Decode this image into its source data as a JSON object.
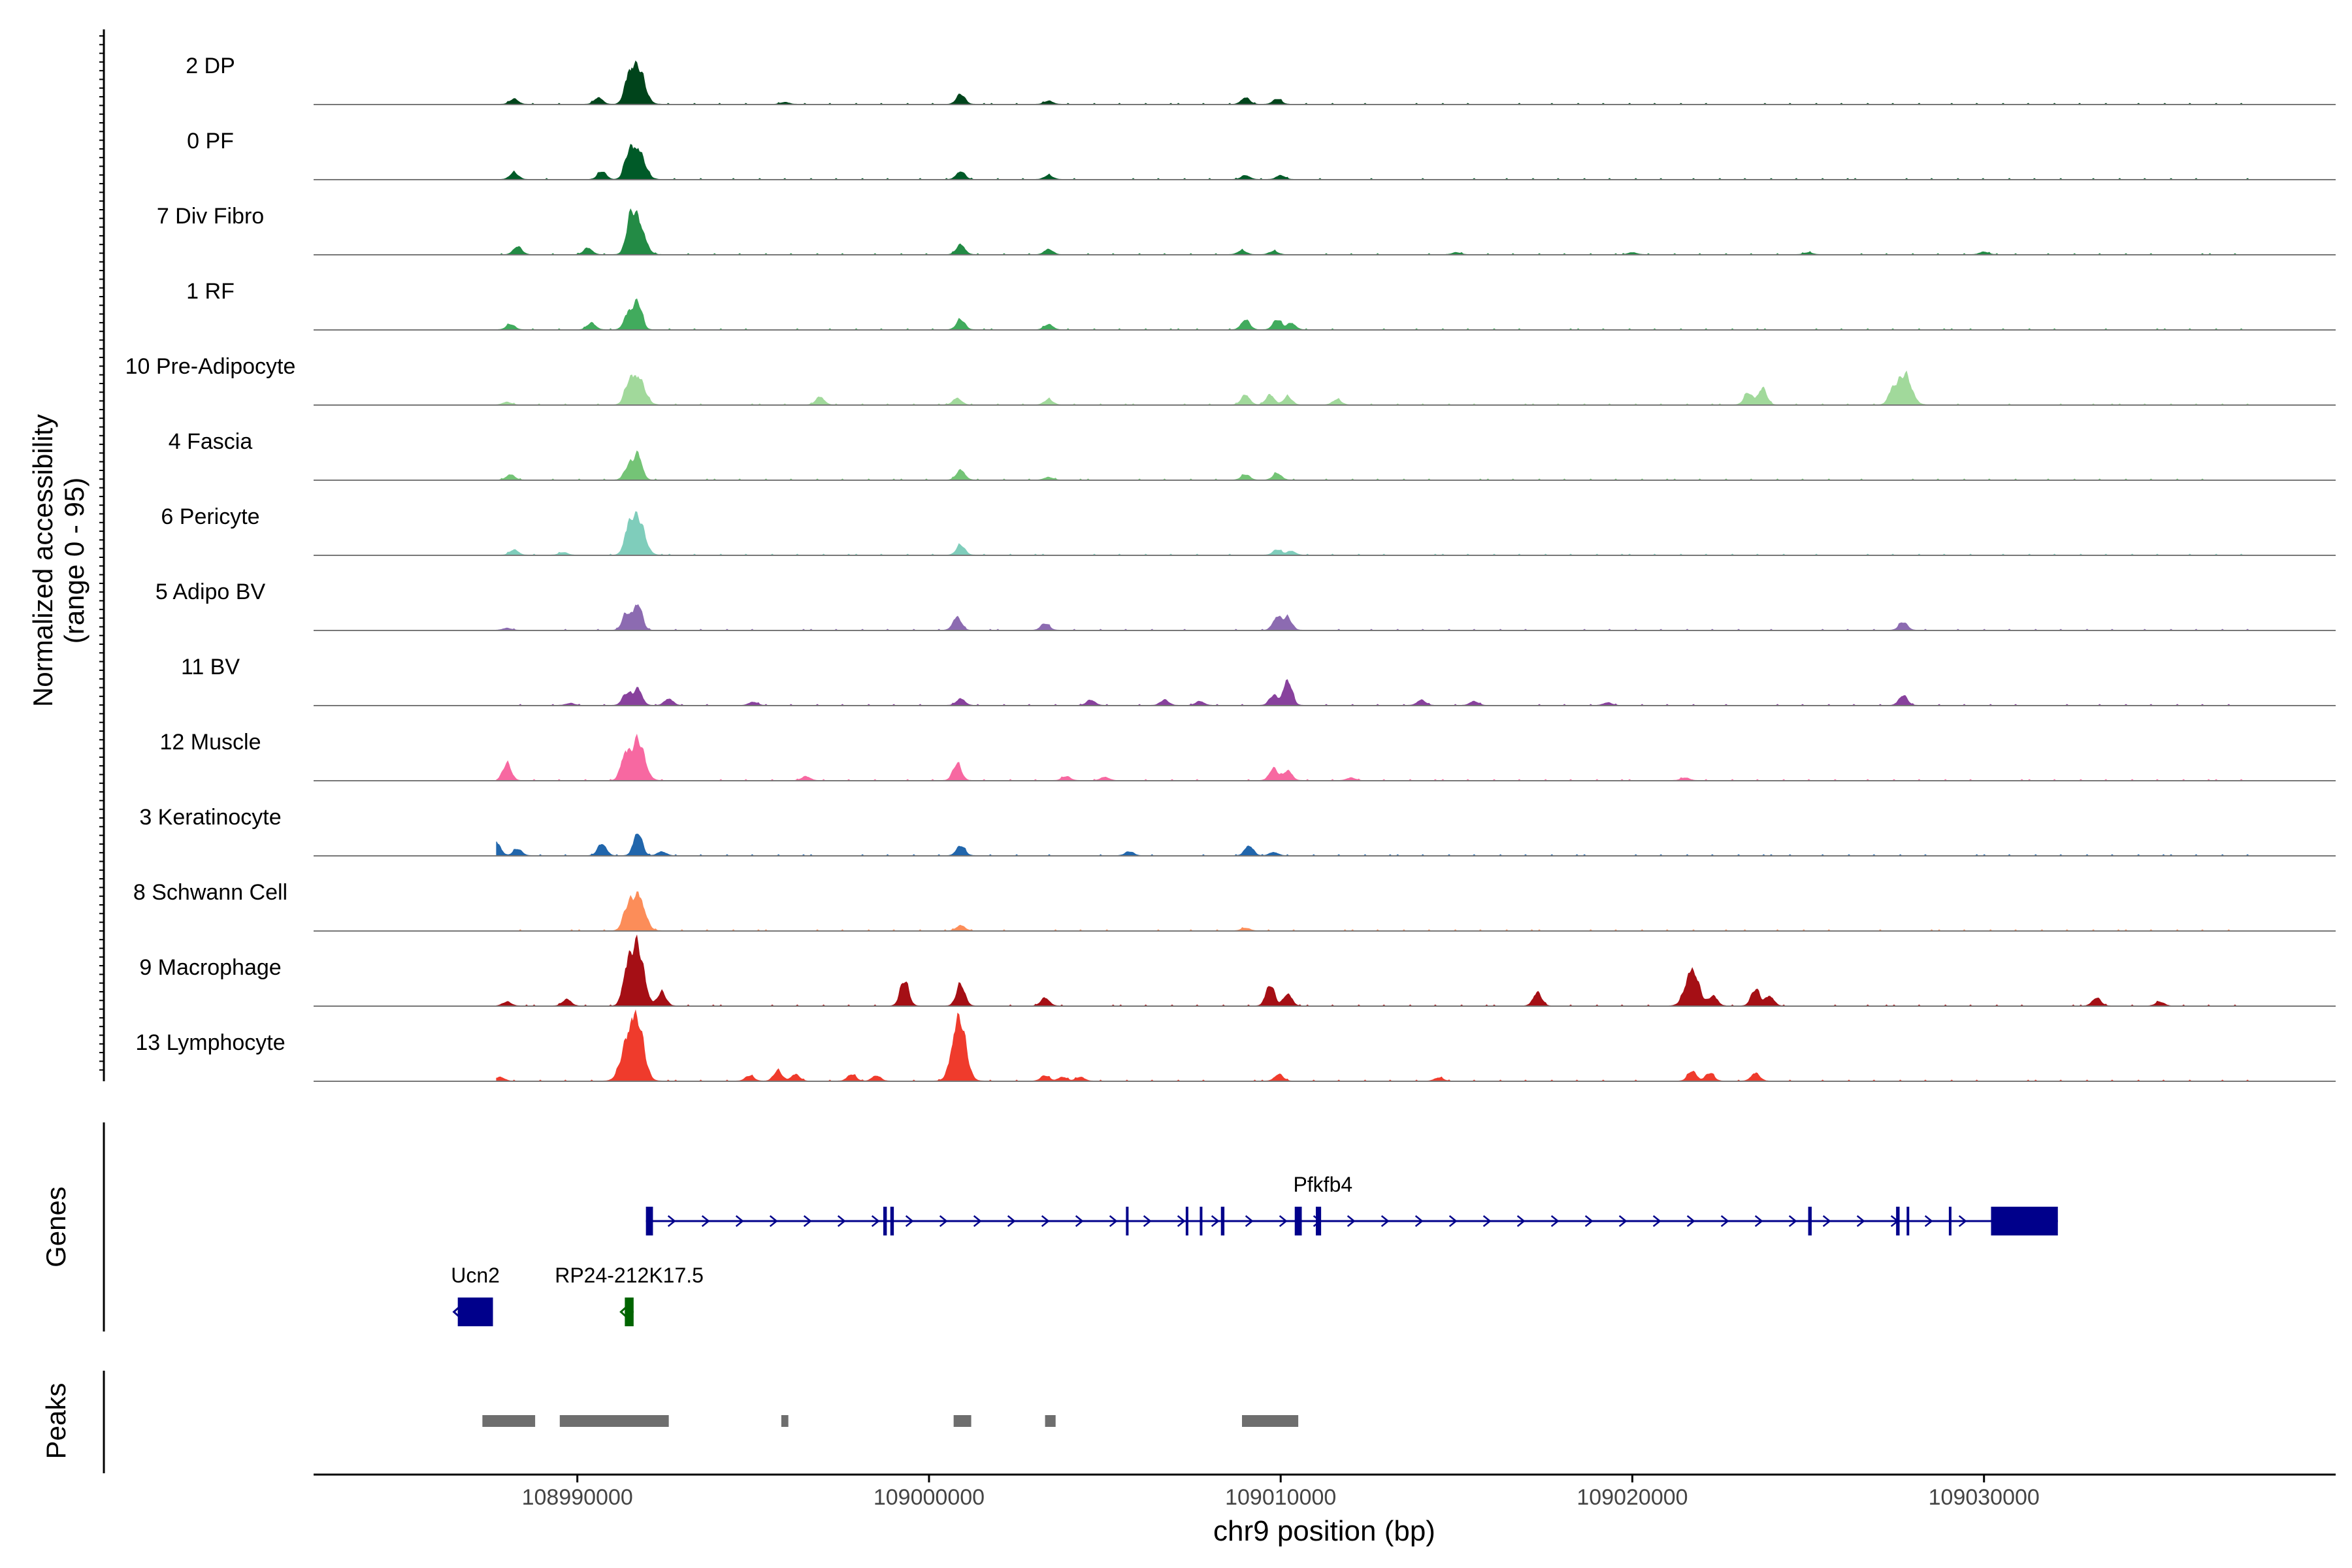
{
  "chart_data": {
    "type": "area",
    "title": "",
    "ylabel_line1": "Normalized accessibility",
    "ylabel_line2": "(range 0 - 95)",
    "xlabel": "chr9 position (bp)",
    "genes_label": "Genes",
    "peaks_label": "Peaks",
    "xlim": [
      108982500,
      109040000
    ],
    "ylim": [
      0,
      95
    ],
    "xticks": [
      108990000,
      109000000,
      109010000,
      109020000,
      109030000
    ],
    "xtick_labels": [
      "108990000",
      "109000000",
      "109010000",
      "109020000",
      "109030000"
    ],
    "tracks": [
      {
        "name": "2 DP",
        "color": "#00441b",
        "peaks": [
          [
            108991720,
            55
          ],
          [
            108991450,
            30
          ],
          [
            108990600,
            10
          ],
          [
            108988200,
            8
          ],
          [
            109000900,
            15
          ],
          [
            109003400,
            5
          ],
          [
            109009000,
            10
          ],
          [
            109009900,
            8
          ],
          [
            108986500,
            3
          ],
          [
            108995900,
            3
          ]
        ]
      },
      {
        "name": "0 PF",
        "color": "#005a28",
        "peaks": [
          [
            108991720,
            45
          ],
          [
            108991450,
            28
          ],
          [
            108990700,
            12
          ],
          [
            108988200,
            10
          ],
          [
            109000900,
            12
          ],
          [
            109003400,
            6
          ],
          [
            109009000,
            6
          ],
          [
            109010000,
            6
          ],
          [
            108986600,
            3
          ]
        ]
      },
      {
        "name": "7 Div Fibro",
        "color": "#238b45",
        "peaks": [
          [
            108991720,
            50
          ],
          [
            108991500,
            35
          ],
          [
            108990300,
            10
          ],
          [
            108988300,
            12
          ],
          [
            109000900,
            15
          ],
          [
            109003400,
            8
          ],
          [
            109008900,
            6
          ],
          [
            109009800,
            5
          ],
          [
            109015000,
            3
          ],
          [
            109020000,
            3
          ],
          [
            109025000,
            3
          ],
          [
            109030000,
            4
          ]
        ]
      },
      {
        "name": "1 RF",
        "color": "#41ab5d",
        "peaks": [
          [
            108991720,
            40
          ],
          [
            108991450,
            25
          ],
          [
            108990400,
            10
          ],
          [
            108988100,
            8
          ],
          [
            109000900,
            15
          ],
          [
            109003400,
            8
          ],
          [
            109009000,
            15
          ],
          [
            109009900,
            15
          ],
          [
            109010300,
            10
          ]
        ]
      },
      {
        "name": "10 Pre-Adipocyte",
        "color": "#a1d99b",
        "peaks": [
          [
            108991720,
            42
          ],
          [
            108991450,
            22
          ],
          [
            108996900,
            12
          ],
          [
            109000800,
            10
          ],
          [
            109003400,
            8
          ],
          [
            109009000,
            15
          ],
          [
            109009700,
            15
          ],
          [
            109010200,
            12
          ],
          [
            109011600,
            8
          ],
          [
            109023300,
            18
          ],
          [
            109023700,
            25
          ],
          [
            109027750,
            45
          ],
          [
            109027400,
            20
          ],
          [
            108988000,
            4
          ],
          [
            108985600,
            3
          ]
        ]
      },
      {
        "name": "4 Fascia",
        "color": "#74c476",
        "peaks": [
          [
            108991720,
            38
          ],
          [
            108991450,
            20
          ],
          [
            108988100,
            8
          ],
          [
            109000900,
            15
          ],
          [
            109003400,
            4
          ],
          [
            109009000,
            8
          ],
          [
            109009900,
            10
          ],
          [
            108986600,
            3
          ]
        ]
      },
      {
        "name": "6 Pericyte",
        "color": "#7fcdbb",
        "peaks": [
          [
            108991720,
            55
          ],
          [
            108991450,
            30
          ],
          [
            108988200,
            8
          ],
          [
            109000900,
            15
          ],
          [
            109009900,
            8
          ],
          [
            109010300,
            6
          ],
          [
            108989600,
            4
          ]
        ]
      },
      {
        "name": "5 Adipo BV",
        "color": "#8c6bb1",
        "peaks": [
          [
            108991720,
            40
          ],
          [
            108991400,
            25
          ],
          [
            109000800,
            20
          ],
          [
            109003300,
            10
          ],
          [
            109009900,
            20
          ],
          [
            109010200,
            18
          ],
          [
            109027700,
            12
          ],
          [
            108988000,
            3
          ],
          [
            108985700,
            3
          ]
        ]
      },
      {
        "name": "11 BV",
        "color": "#88419d",
        "peaks": [
          [
            108991720,
            25
          ],
          [
            108991400,
            18
          ],
          [
            108992600,
            10
          ],
          [
            109000900,
            10
          ],
          [
            109009800,
            15
          ],
          [
            109010200,
            38
          ],
          [
            109004600,
            8
          ],
          [
            109006700,
            8
          ],
          [
            109007700,
            6
          ],
          [
            109014000,
            8
          ],
          [
            109015500,
            6
          ],
          [
            109027700,
            15
          ],
          [
            108986300,
            4
          ],
          [
            108989800,
            3
          ],
          [
            108995000,
            5
          ],
          [
            109019300,
            4
          ]
        ]
      },
      {
        "name": "12 Muscle",
        "color": "#f768a1",
        "peaks": [
          [
            108991720,
            60
          ],
          [
            108991350,
            35
          ],
          [
            108988000,
            25
          ],
          [
            109000800,
            25
          ],
          [
            109009800,
            18
          ],
          [
            109010200,
            15
          ],
          [
            108996500,
            6
          ],
          [
            109003900,
            6
          ],
          [
            109005000,
            5
          ],
          [
            109012000,
            4
          ],
          [
            109021500,
            4
          ]
        ]
      },
      {
        "name": "3 Keratinocyte",
        "color": "#2166ac",
        "peaks": [
          [
            108991720,
            35
          ],
          [
            108990700,
            18
          ],
          [
            108987300,
            18
          ],
          [
            108987700,
            20
          ],
          [
            108988300,
            10
          ],
          [
            109000900,
            15
          ],
          [
            109009100,
            15
          ],
          [
            109005700,
            6
          ],
          [
            108992400,
            6
          ],
          [
            109009800,
            5
          ]
        ]
      },
      {
        "name": "8 Schwann Cell",
        "color": "#fc8d59",
        "peaks": [
          [
            108991720,
            55
          ],
          [
            108991400,
            25
          ],
          [
            108986500,
            5
          ],
          [
            109000900,
            8
          ],
          [
            109009000,
            4
          ]
        ]
      },
      {
        "name": "9 Macrophage",
        "color": "#a50f15",
        "peaks": [
          [
            108991700,
            90
          ],
          [
            108991400,
            40
          ],
          [
            108992400,
            20
          ],
          [
            108999300,
            38
          ],
          [
            109000900,
            32
          ],
          [
            109003300,
            12
          ],
          [
            109009700,
            32
          ],
          [
            109010200,
            18
          ],
          [
            109017300,
            20
          ],
          [
            109021700,
            55
          ],
          [
            109022300,
            15
          ],
          [
            109023500,
            25
          ],
          [
            109023900,
            15
          ],
          [
            109033200,
            12
          ],
          [
            109035000,
            6
          ],
          [
            108989700,
            10
          ],
          [
            108988000,
            6
          ],
          [
            108986500,
            4
          ]
        ]
      },
      {
        "name": "13 Lymphocyte",
        "color": "#ef3b2c",
        "peaks": [
          [
            108991700,
            85
          ],
          [
            108991400,
            45
          ],
          [
            109000850,
            95
          ],
          [
            108995700,
            15
          ],
          [
            108996200,
            10
          ],
          [
            108994900,
            8
          ],
          [
            108997800,
            10
          ],
          [
            108998500,
            8
          ],
          [
            109003300,
            8
          ],
          [
            109003800,
            6
          ],
          [
            109004300,
            6
          ],
          [
            109009950,
            10
          ],
          [
            109021700,
            15
          ],
          [
            109022200,
            12
          ],
          [
            109023500,
            12
          ],
          [
            108987800,
            6
          ],
          [
            109014500,
            5
          ]
        ]
      }
    ],
    "genes": [
      {
        "name": "Pfkfb4",
        "strand": "+",
        "start": 108991950,
        "end": 109032100,
        "color": "#00008b",
        "exons": [
          [
            108991950,
            108992150
          ],
          [
            108998700,
            108998800
          ],
          [
            108998900,
            108999000
          ],
          [
            109005600,
            109005650
          ],
          [
            109007300,
            109007350
          ],
          [
            109007700,
            109007750
          ],
          [
            109008300,
            109008400
          ],
          [
            109010400,
            109010600
          ],
          [
            109011000,
            109011150
          ],
          [
            109025000,
            109025100
          ],
          [
            109027500,
            109027600
          ],
          [
            109027800,
            109027850
          ],
          [
            109029000,
            109029050
          ],
          [
            109030200,
            109032100
          ]
        ]
      },
      {
        "name": "Ucn2",
        "strand": "-",
        "start": 108986600,
        "end": 108987600,
        "color": "#00008b",
        "exons": [
          [
            108986600,
            108987600
          ]
        ]
      },
      {
        "name": "RP24-212K17.5",
        "strand": "-",
        "start": 108991350,
        "end": 108991600,
        "color": "#006400",
        "exons": [
          [
            108991350,
            108991600
          ]
        ]
      }
    ],
    "peak_regions": [
      [
        108987300,
        108988800
      ],
      [
        108989500,
        108992600
      ],
      [
        108995800,
        108996000
      ],
      [
        109000700,
        109001200
      ],
      [
        109003300,
        109003600
      ],
      [
        109008900,
        109010500
      ]
    ]
  }
}
